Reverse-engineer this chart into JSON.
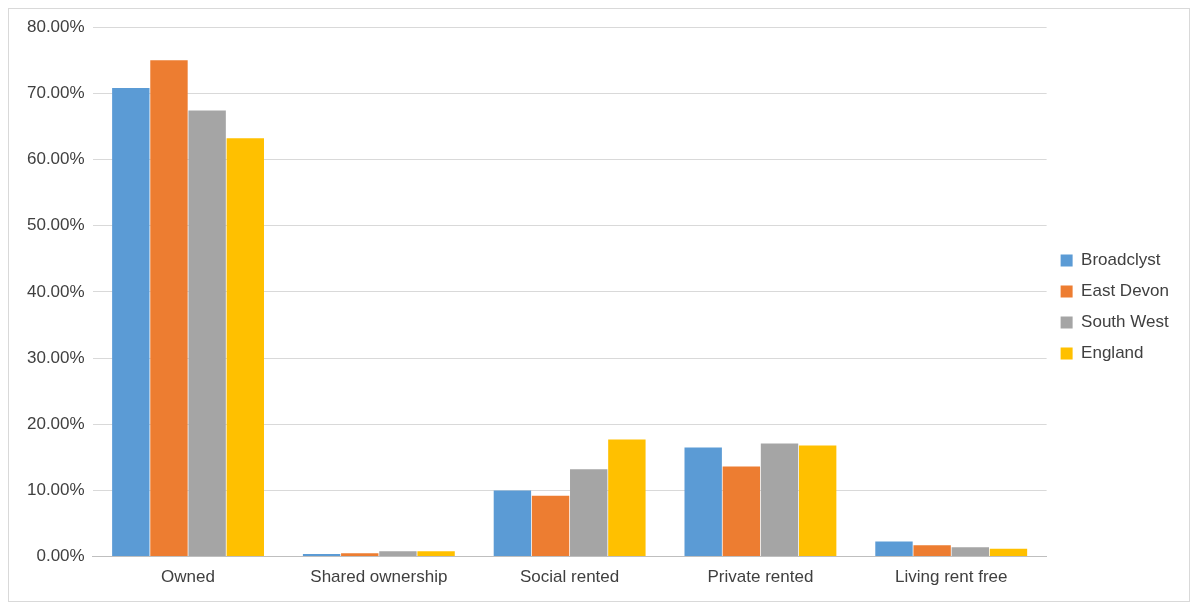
{
  "chart_data": {
    "type": "bar",
    "categories": [
      "Owned",
      "Shared ownership",
      "Social rented",
      "Private rented",
      "Living rent free"
    ],
    "series": [
      {
        "name": "Broadclyst",
        "color": "#5b9bd5",
        "values": [
          70.8,
          0.4,
          10.0,
          16.5,
          2.3
        ]
      },
      {
        "name": "East Devon",
        "color": "#ed7d31",
        "values": [
          75.0,
          0.5,
          9.2,
          13.6,
          1.7
        ]
      },
      {
        "name": "South West",
        "color": "#a5a5a5",
        "values": [
          67.4,
          0.8,
          13.2,
          17.1,
          1.4
        ]
      },
      {
        "name": "England",
        "color": "#ffc000",
        "values": [
          63.2,
          0.8,
          17.7,
          16.8,
          1.2
        ]
      }
    ],
    "ylim": [
      0,
      80
    ],
    "yticks": [
      {
        "value": 0,
        "label": "0.00%"
      },
      {
        "value": 10,
        "label": "10.00%"
      },
      {
        "value": 20,
        "label": "20.00%"
      },
      {
        "value": 30,
        "label": "30.00%"
      },
      {
        "value": 40,
        "label": "40.00%"
      },
      {
        "value": 50,
        "label": "50.00%"
      },
      {
        "value": 60,
        "label": "60.00%"
      },
      {
        "value": 70,
        "label": "70.00%"
      },
      {
        "value": 80,
        "label": "80.00%"
      }
    ],
    "grid": "y",
    "legend": "right"
  }
}
